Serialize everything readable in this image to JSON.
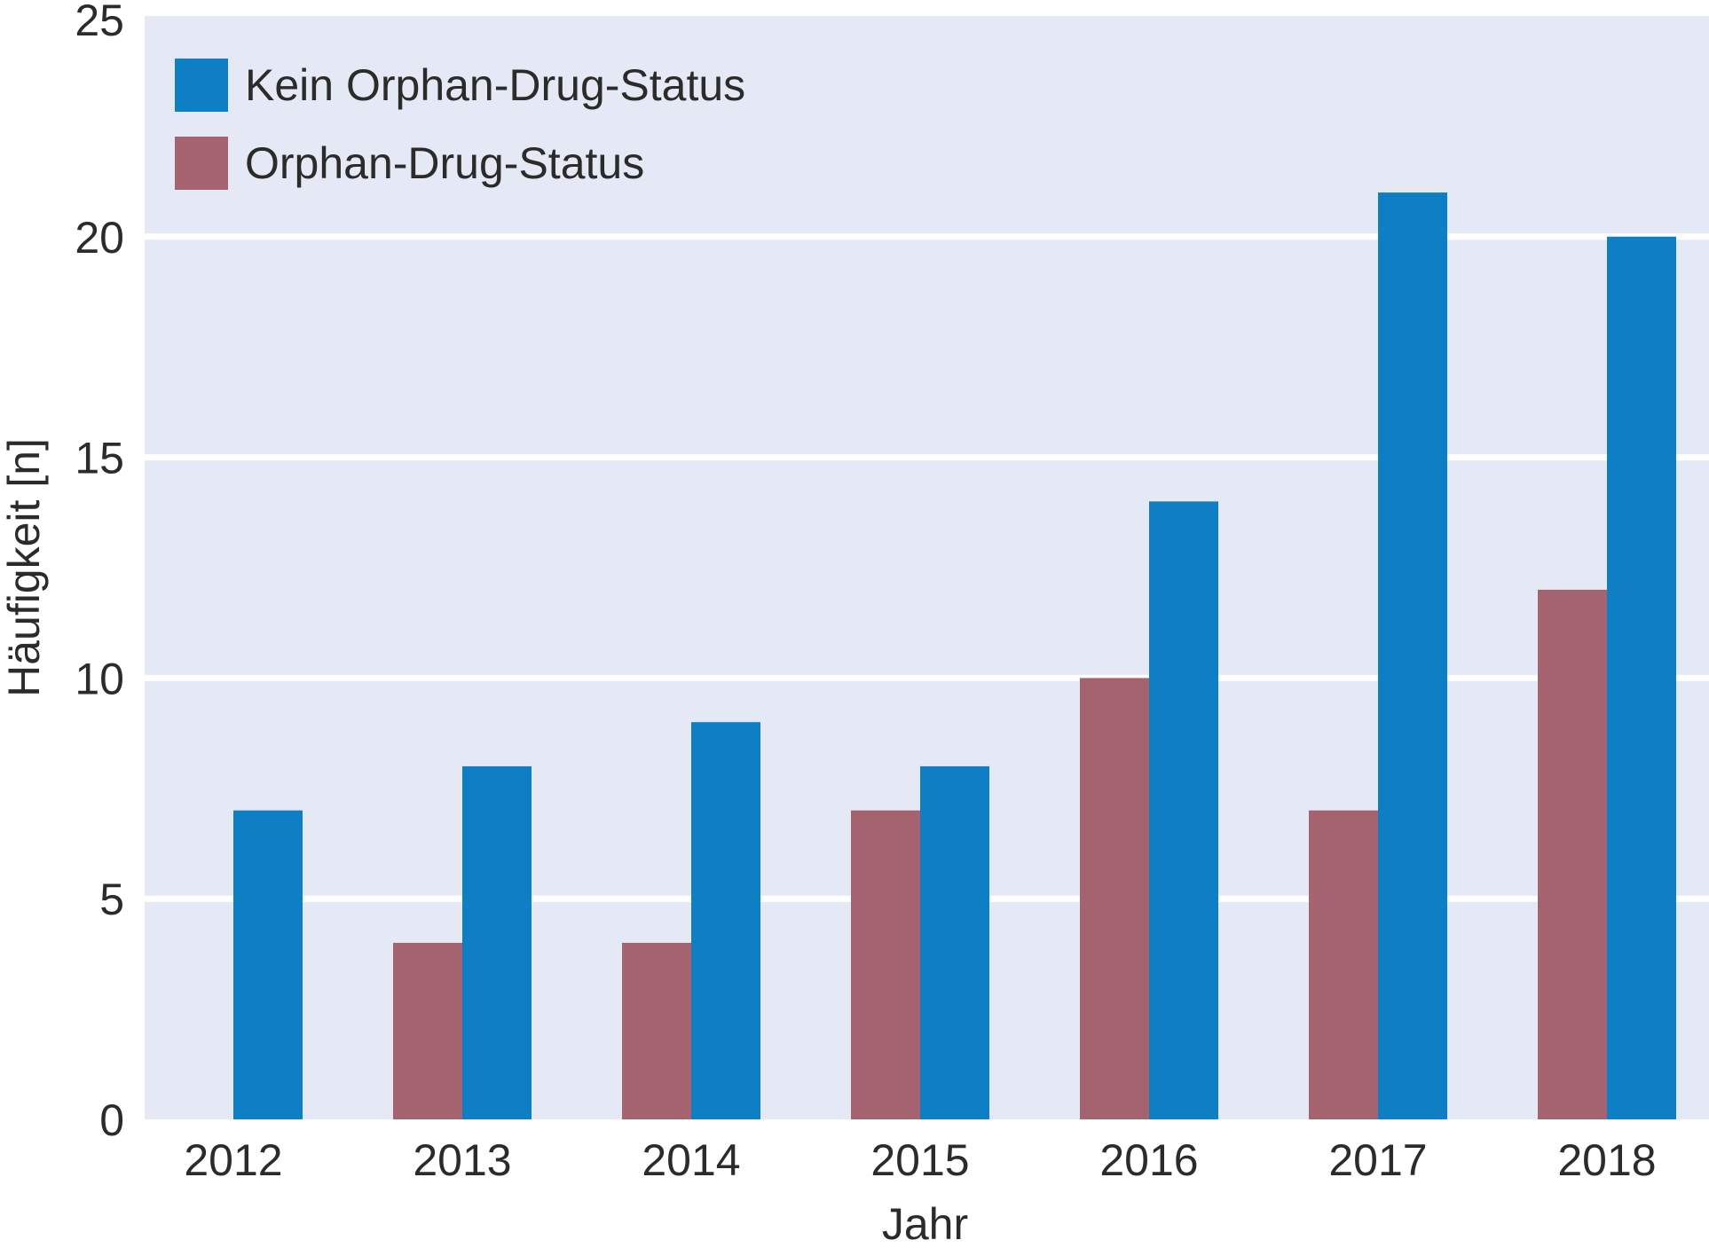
{
  "chart_data": {
    "type": "bar",
    "categories": [
      "2012",
      "2013",
      "2014",
      "2015",
      "2016",
      "2017",
      "2018"
    ],
    "series": [
      {
        "name": "Orphan-Drug-Status",
        "values": [
          0,
          4,
          4,
          7,
          10,
          7,
          12
        ],
        "color": "#a4636e"
      },
      {
        "name": "Kein Orphan-Drug-Status",
        "values": [
          7,
          8,
          9,
          8,
          14,
          21,
          20
        ],
        "color": "#0f7fc5"
      }
    ],
    "legend_order": [
      1,
      0
    ],
    "xlabel": "Jahr",
    "ylabel": "Häufigkeit [n]",
    "ylim": [
      0,
      25
    ],
    "yticks": [
      0,
      5,
      10,
      15,
      20,
      25
    ],
    "grid": true,
    "legend_position": "top-left",
    "background_color": "#e4e9f5",
    "grid_color": "#ffffff"
  }
}
